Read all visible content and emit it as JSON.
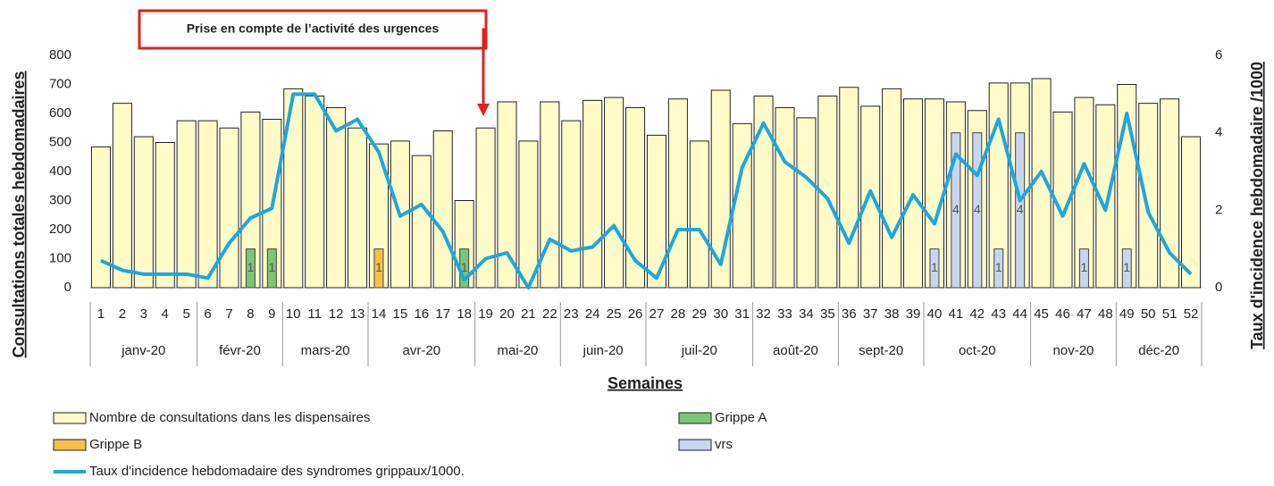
{
  "chart_data": {
    "type": "bar-line",
    "annotation": "Prise en compte de l’activité des urgences",
    "ylabel": "Consultations totales hebdomadaires",
    "y2label": "Taux d'incidence hebdomadaire /1000",
    "xlabel": "Semaines",
    "categories": [
      "1",
      "2",
      "3",
      "4",
      "5",
      "6",
      "7",
      "8",
      "9",
      "10",
      "11",
      "12",
      "13",
      "14",
      "15",
      "16",
      "17",
      "18",
      "19",
      "20",
      "21",
      "22",
      "23",
      "24",
      "25",
      "26",
      "27",
      "28",
      "29",
      "30",
      "31",
      "32",
      "33",
      "34",
      "35",
      "36",
      "37",
      "38",
      "39",
      "40",
      "41",
      "42",
      "43",
      "44",
      "45",
      "46",
      "47",
      "48",
      "49",
      "50",
      "51",
      "52"
    ],
    "months": [
      "janv-20",
      null,
      null,
      null,
      null,
      "févr-20",
      null,
      null,
      null,
      "mars-20",
      null,
      null,
      null,
      "avr-20",
      null,
      null,
      null,
      null,
      "mai-20",
      null,
      null,
      null,
      "juin-20",
      null,
      null,
      null,
      "juil-20",
      null,
      null,
      null,
      null,
      "août-20",
      null,
      null,
      null,
      "sept-20",
      null,
      null,
      null,
      "oct-20",
      null,
      null,
      null,
      null,
      "nov-20",
      null,
      null,
      null,
      "déc-20",
      null,
      null,
      null
    ],
    "ylim": [
      0,
      800
    ],
    "yticks": [
      0,
      100,
      200,
      300,
      400,
      500,
      600,
      700,
      800
    ],
    "y2lim": [
      0,
      6
    ],
    "y2ticks": [
      0,
      2,
      4,
      6
    ],
    "grid": false,
    "series": [
      {
        "name": "Nombre de consultations dans les dispensaires",
        "kind": "bar",
        "color": "#fffbc8",
        "axis": "y",
        "values": [
          485,
          635,
          520,
          500,
          575,
          575,
          550,
          605,
          580,
          685,
          660,
          620,
          550,
          495,
          505,
          455,
          540,
          300,
          550,
          640,
          505,
          640,
          575,
          645,
          655,
          620,
          525,
          650,
          505,
          680,
          565,
          660,
          620,
          585,
          660,
          690,
          625,
          685,
          650,
          650,
          640,
          610,
          705,
          705,
          720,
          605,
          655,
          630,
          700,
          635,
          650,
          520
        ]
      },
      {
        "name": "Grippe A",
        "kind": "small-bar",
        "color": "#7cc576",
        "axis": "y2",
        "data_labels": true,
        "values": [
          null,
          null,
          null,
          null,
          null,
          null,
          null,
          1,
          1,
          null,
          null,
          null,
          null,
          null,
          null,
          null,
          null,
          1,
          null,
          null,
          null,
          null,
          null,
          null,
          null,
          null,
          null,
          null,
          null,
          null,
          null,
          null,
          null,
          null,
          null,
          null,
          null,
          null,
          null,
          null,
          null,
          null,
          null,
          null,
          null,
          null,
          null,
          null,
          null,
          null,
          null,
          null
        ]
      },
      {
        "name": "Grippe B",
        "kind": "small-bar",
        "color": "#f5c04a",
        "axis": "y2",
        "data_labels": true,
        "values": [
          null,
          null,
          null,
          null,
          null,
          null,
          null,
          null,
          null,
          null,
          null,
          null,
          null,
          1,
          null,
          null,
          null,
          null,
          null,
          null,
          null,
          null,
          null,
          null,
          null,
          null,
          null,
          null,
          null,
          null,
          null,
          null,
          null,
          null,
          null,
          null,
          null,
          null,
          null,
          null,
          null,
          null,
          null,
          null,
          null,
          null,
          null,
          null,
          null,
          null,
          null,
          null
        ]
      },
      {
        "name": "vrs",
        "kind": "small-bar",
        "color": "#c9d4ee",
        "axis": "y2",
        "data_labels": true,
        "values": [
          null,
          null,
          null,
          null,
          null,
          null,
          null,
          null,
          null,
          null,
          null,
          null,
          null,
          null,
          null,
          null,
          null,
          null,
          null,
          null,
          null,
          null,
          null,
          null,
          null,
          null,
          null,
          null,
          null,
          null,
          null,
          null,
          null,
          null,
          null,
          null,
          null,
          null,
          null,
          1,
          4,
          4,
          1,
          4,
          null,
          null,
          1,
          null,
          1,
          null,
          null,
          null
        ]
      },
      {
        "name": "Taux d'incidence hebdomadaire des syndromes grippaux/1000.",
        "kind": "line",
        "color": "#1ea6df",
        "axis": "y2",
        "values": [
          0.7,
          0.45,
          0.35,
          0.35,
          0.35,
          0.25,
          1.15,
          1.8,
          2.05,
          5.0,
          5.0,
          4.05,
          4.35,
          3.5,
          1.85,
          2.15,
          1.45,
          0.2,
          0.75,
          0.9,
          0,
          1.25,
          0.95,
          1.05,
          1.6,
          0.7,
          0.25,
          1.5,
          1.5,
          0.6,
          3.1,
          4.25,
          3.25,
          2.85,
          2.3,
          1.15,
          2.5,
          1.3,
          2.4,
          1.65,
          3.45,
          2.9,
          4.35,
          2.25,
          3.0,
          1.85,
          3.2,
          2.0,
          4.5,
          1.95,
          0.9,
          0.35
        ]
      }
    ]
  }
}
